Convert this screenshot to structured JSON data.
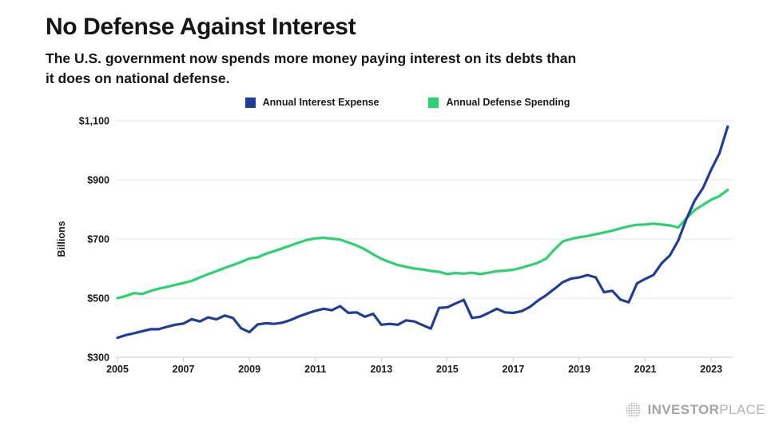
{
  "header": {
    "title": "No Defense Against Interest",
    "subtitle": "The U.S. government now spends more money paying interest on its debts than\nit does on national defense."
  },
  "chart_data": {
    "type": "line",
    "ylabel": "Billions",
    "ylim": [
      300,
      1100
    ],
    "yticks": [
      300,
      500,
      700,
      900,
      1100
    ],
    "ytick_labels": [
      "$300",
      "$500",
      "$700",
      "$900",
      "$1,100"
    ],
    "xticks": [
      2005,
      2007,
      2009,
      2011,
      2013,
      2015,
      2017,
      2019,
      2021,
      2023
    ],
    "xtick_labels": [
      "2005",
      "2007",
      "2009",
      "2011",
      "2013",
      "2015",
      "2017",
      "2019",
      "2021",
      "2023"
    ],
    "x_start": 2005.0,
    "x_step": 0.25,
    "grid": true,
    "legend_position": "top",
    "colors": {
      "grid": "#e4e4e4",
      "axis": "#c9c9c9",
      "tick_text": "#1a1a1a"
    },
    "series": [
      {
        "name": "Annual Interest Expense",
        "color": "#1f3e9a",
        "values": [
          366,
          375,
          381,
          388,
          395,
          395,
          403,
          410,
          414,
          429,
          421,
          435,
          428,
          441,
          433,
          398,
          385,
          411,
          415,
          413,
          417,
          426,
          438,
          448,
          457,
          464,
          459,
          473,
          450,
          452,
          437,
          447,
          410,
          413,
          410,
          425,
          421,
          409,
          397,
          467,
          469,
          482,
          494,
          433,
          437,
          450,
          464,
          452,
          450,
          456,
          470,
          492,
          510,
          532,
          554,
          566,
          570,
          578,
          570,
          520,
          525,
          495,
          486,
          550,
          565,
          578,
          618,
          645,
          695,
          768,
          830,
          872,
          935,
          990,
          1080
        ]
      },
      {
        "name": "Annual Defense Spending",
        "color": "#2bd36f",
        "values": [
          500,
          507,
          517,
          514,
          524,
          532,
          538,
          545,
          551,
          558,
          570,
          581,
          591,
          602,
          612,
          622,
          634,
          638,
          650,
          659,
          668,
          678,
          688,
          697,
          702,
          704,
          701,
          698,
          688,
          678,
          665,
          648,
          633,
          622,
          612,
          606,
          600,
          597,
          592,
          589,
          581,
          585,
          583,
          586,
          581,
          586,
          591,
          593,
          596,
          603,
          611,
          620,
          634,
          665,
          692,
          700,
          706,
          710,
          716,
          722,
          728,
          736,
          743,
          748,
          749,
          752,
          749,
          746,
          739,
          770,
          798,
          815,
          833,
          845,
          866
        ]
      }
    ]
  },
  "branding": {
    "logo_bold": "INVESTOR",
    "logo_light": "PLACE"
  }
}
